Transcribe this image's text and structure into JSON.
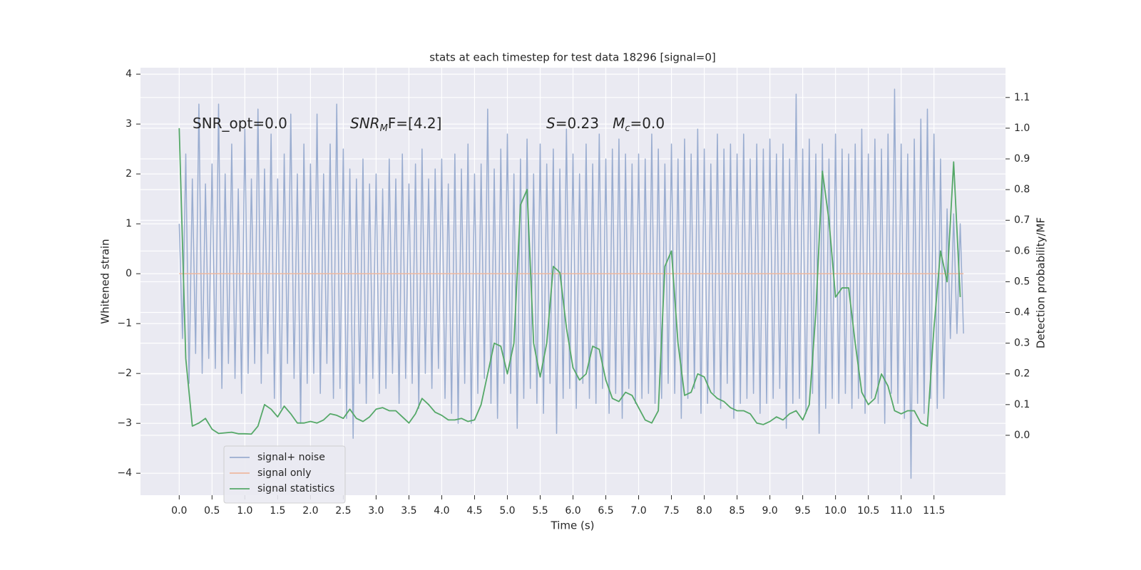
{
  "chart_data": {
    "type": "line",
    "title": "stats at each timestep for test data 18296 [signal=0]",
    "x_label": "Time (s)",
    "y_label": "Whitened strain",
    "y2_label": "Detection probability/MF",
    "annotations": [
      [
        "SNR_opt=0.0"
      ],
      [
        "SNR",
        "M",
        "F=[4.2]"
      ],
      [
        "S",
        "=0.23   ",
        "M",
        "c",
        "=0.0"
      ]
    ],
    "xlim": [
      -0.59,
      12.59
    ],
    "ylim": [
      -4.44,
      4.13
    ],
    "y2lim": [
      -0.195,
      1.197
    ],
    "xticks": [
      {
        "value": 0,
        "label": "0.0"
      },
      0.5,
      {
        "value": 1,
        "label": "1.0"
      },
      1.5,
      {
        "value": 2,
        "label": "2.0"
      },
      2.5,
      {
        "value": 3,
        "label": "3.0"
      },
      3.5,
      {
        "value": 4,
        "label": "4.0"
      },
      4.5,
      {
        "value": 5,
        "label": "5.0"
      },
      5.5,
      {
        "value": 6,
        "label": "6.0"
      },
      6.5,
      {
        "value": 7,
        "label": "7.0"
      },
      7.5,
      {
        "value": 8,
        "label": "8.0"
      },
      8.5,
      {
        "value": 9,
        "label": "9.0"
      },
      9.5,
      {
        "value": 10,
        "label": "10.0"
      },
      10.5,
      {
        "value": 11,
        "label": "11.0"
      },
      11.5
    ],
    "yticks": [
      {
        "value": -4,
        "label": "−4"
      },
      {
        "value": -3,
        "label": "−3"
      },
      {
        "value": -2,
        "label": "−2"
      },
      {
        "value": -1,
        "label": "−1"
      },
      0,
      1,
      2,
      3,
      4
    ],
    "y2ticks": [
      {
        "value": 0,
        "label": "0.0"
      },
      0.1,
      0.2,
      0.3,
      0.4,
      0.5,
      0.6,
      0.7,
      0.8,
      0.9,
      {
        "value": 1,
        "label": "1.0"
      },
      1.1
    ],
    "grid": true,
    "legend_loc": "lower left",
    "series": [
      {
        "name": "signal+ noise",
        "color": "#9aadd0",
        "x": [
          0,
          0.05,
          0.1,
          0.15,
          0.2,
          0.25,
          0.3,
          0.35,
          0.4,
          0.45,
          0.5,
          0.55,
          0.6,
          0.65,
          0.7,
          0.75,
          0.8,
          0.85,
          0.9,
          0.95,
          1,
          1.05,
          1.1,
          1.15,
          1.2,
          1.25,
          1.3,
          1.35,
          1.4,
          1.45,
          1.5,
          1.55,
          1.6,
          1.65,
          1.7,
          1.75,
          1.8,
          1.85,
          1.9,
          1.95,
          2,
          2.05,
          2.1,
          2.15,
          2.2,
          2.25,
          2.3,
          2.35,
          2.4,
          2.45,
          2.5,
          2.55,
          2.6,
          2.65,
          2.7,
          2.75,
          2.8,
          2.85,
          2.9,
          2.95,
          3,
          3.05,
          3.1,
          3.15,
          3.2,
          3.25,
          3.3,
          3.35,
          3.4,
          3.45,
          3.5,
          3.55,
          3.6,
          3.65,
          3.7,
          3.75,
          3.8,
          3.85,
          3.9,
          3.95,
          4,
          4.05,
          4.1,
          4.15,
          4.2,
          4.25,
          4.3,
          4.35,
          4.4,
          4.45,
          4.5,
          4.55,
          4.6,
          4.65,
          4.7,
          4.75,
          4.8,
          4.85,
          4.9,
          4.95,
          5,
          5.05,
          5.1,
          5.15,
          5.2,
          5.25,
          5.3,
          5.35,
          5.4,
          5.45,
          5.5,
          5.55,
          5.6,
          5.65,
          5.7,
          5.75,
          5.8,
          5.85,
          5.9,
          5.95,
          6,
          6.05,
          6.1,
          6.15,
          6.2,
          6.25,
          6.3,
          6.35,
          6.4,
          6.45,
          6.5,
          6.55,
          6.6,
          6.65,
          6.7,
          6.75,
          6.8,
          6.85,
          6.9,
          6.95,
          7,
          7.05,
          7.1,
          7.15,
          7.2,
          7.25,
          7.3,
          7.35,
          7.4,
          7.45,
          7.5,
          7.55,
          7.6,
          7.65,
          7.7,
          7.75,
          7.8,
          7.85,
          7.9,
          7.95,
          8,
          8.05,
          8.1,
          8.15,
          8.2,
          8.25,
          8.3,
          8.35,
          8.4,
          8.45,
          8.5,
          8.55,
          8.6,
          8.65,
          8.7,
          8.75,
          8.8,
          8.85,
          8.9,
          8.95,
          9,
          9.05,
          9.1,
          9.15,
          9.2,
          9.25,
          9.3,
          9.35,
          9.4,
          9.45,
          9.5,
          9.55,
          9.6,
          9.65,
          9.7,
          9.75,
          9.8,
          9.85,
          9.9,
          9.95,
          10,
          10.05,
          10.1,
          10.15,
          10.2,
          10.25,
          10.3,
          10.35,
          10.4,
          10.45,
          10.5,
          10.55,
          10.6,
          10.65,
          10.7,
          10.75,
          10.8,
          10.85,
          10.9,
          10.95,
          11,
          11.05,
          11.1,
          11.15,
          11.2,
          11.25,
          11.3,
          11.35,
          11.4,
          11.45,
          11.5,
          11.55,
          11.6,
          11.65,
          11.7,
          11.75,
          11.8,
          11.85,
          11.9,
          11.95
        ],
        "values": [
          1.0,
          -1.3,
          2.4,
          -2.2,
          1.9,
          -1.6,
          3.4,
          -2.0,
          1.8,
          -1.7,
          2.2,
          -1.9,
          3.4,
          -2.3,
          2.0,
          -1.8,
          2.6,
          -2.1,
          1.7,
          -2.4,
          2.9,
          -2.0,
          1.9,
          -1.8,
          3.3,
          -2.2,
          2.1,
          -1.6,
          2.8,
          -2.5,
          1.9,
          -2.7,
          2.4,
          -1.8,
          3.2,
          -2.1,
          2.0,
          -3.0,
          2.6,
          -2.2,
          2.2,
          -2.0,
          3.2,
          -2.4,
          2.0,
          -1.8,
          2.6,
          -2.5,
          3.4,
          -2.3,
          2.5,
          -2.9,
          2.1,
          -3.3,
          1.9,
          -2.2,
          2.3,
          -2.6,
          1.8,
          -2.1,
          2.0,
          -2.4,
          1.7,
          -2.3,
          2.3,
          -2.0,
          1.9,
          -2.6,
          2.4,
          -2.1,
          1.8,
          -2.2,
          2.2,
          -2.7,
          2.5,
          -2.0,
          1.9,
          -2.3,
          2.1,
          -1.9,
          2.3,
          -2.5,
          1.8,
          -2.8,
          2.4,
          -3.0,
          2.1,
          -2.2,
          2.6,
          -3.0,
          2.0,
          -2.4,
          2.2,
          -2.1,
          3.3,
          -2.6,
          2.1,
          -2.9,
          2.5,
          -2.2,
          2.8,
          -2.4,
          2.0,
          -3.1,
          2.3,
          -2.5,
          2.7,
          -2.3,
          2.0,
          -2.6,
          2.6,
          -2.8,
          2.2,
          -2.2,
          2.5,
          -3.2,
          2.1,
          -2.5,
          2.9,
          -2.3,
          2.4,
          -2.7,
          2.0,
          -2.2,
          2.6,
          -2.5,
          2.2,
          -2.6,
          2.8,
          -2.3,
          2.3,
          -2.8,
          2.5,
          -2.4,
          2.7,
          -2.9,
          2.4,
          -2.3,
          2.2,
          -2.6,
          2.4,
          -2.5,
          2.3,
          -2.4,
          2.8,
          -2.6,
          2.5,
          -2.5,
          2.2,
          -2.2,
          2.6,
          -2.4,
          2.3,
          -2.9,
          2.7,
          -2.5,
          2.4,
          -2.3,
          2.9,
          -2.8,
          2.5,
          -2.6,
          2.2,
          -2.4,
          2.8,
          -2.7,
          2.5,
          -2.2,
          2.6,
          -2.9,
          2.4,
          -2.6,
          2.8,
          -2.5,
          2.3,
          -2.4,
          2.6,
          -2.8,
          2.5,
          -2.6,
          2.7,
          -2.5,
          2.4,
          -2.3,
          2.6,
          -3.1,
          2.3,
          -2.6,
          3.6,
          -2.5,
          2.5,
          -2.8,
          2.7,
          -2.4,
          2.4,
          -3.2,
          2.6,
          -2.7,
          2.3,
          -2.5,
          2.8,
          -2.6,
          2.5,
          -2.4,
          2.4,
          -2.7,
          2.6,
          -2.5,
          2.9,
          -2.8,
          2.4,
          -2.5,
          2.7,
          -2.6,
          2.5,
          -3.0,
          2.8,
          -2.4,
          3.7,
          -2.6,
          2.6,
          -2.9,
          2.4,
          -4.1,
          2.7,
          -2.6,
          3.1,
          -2.8,
          3.3,
          -2.5,
          2.8,
          -2.7,
          2.3,
          -2.5,
          1.3,
          -1.3,
          1.2,
          -1.2,
          1.0,
          -1.2
        ]
      },
      {
        "name": "signal only",
        "color": "#eeb9a0",
        "x": [
          0,
          11.95
        ],
        "values": [
          0,
          0
        ]
      },
      {
        "name": "signal statistics",
        "color": "#55a868",
        "axis": "y2",
        "x": [
          0,
          0.1,
          0.2,
          0.3,
          0.4,
          0.5,
          0.6,
          0.7,
          0.8,
          0.9,
          1,
          1.1,
          1.2,
          1.3,
          1.4,
          1.5,
          1.6,
          1.7,
          1.8,
          1.9,
          2,
          2.1,
          2.2,
          2.3,
          2.4,
          2.5,
          2.6,
          2.7,
          2.8,
          2.9,
          3,
          3.1,
          3.2,
          3.3,
          3.4,
          3.5,
          3.6,
          3.7,
          3.8,
          3.9,
          4,
          4.1,
          4.2,
          4.3,
          4.4,
          4.5,
          4.6,
          4.7,
          4.8,
          4.9,
          5,
          5.1,
          5.2,
          5.3,
          5.4,
          5.5,
          5.6,
          5.7,
          5.8,
          5.9,
          6,
          6.1,
          6.2,
          6.3,
          6.4,
          6.5,
          6.6,
          6.7,
          6.8,
          6.9,
          7,
          7.1,
          7.2,
          7.3,
          7.4,
          7.5,
          7.6,
          7.7,
          7.8,
          7.9,
          8,
          8.1,
          8.2,
          8.3,
          8.4,
          8.5,
          8.6,
          8.7,
          8.8,
          8.9,
          9,
          9.1,
          9.2,
          9.3,
          9.4,
          9.5,
          9.6,
          9.7,
          9.8,
          9.9,
          10,
          10.1,
          10.2,
          10.3,
          10.4,
          10.5,
          10.6,
          10.7,
          10.8,
          10.9,
          11,
          11.1,
          11.2,
          11.3,
          11.4,
          11.5,
          11.6,
          11.7,
          11.8,
          11.9
        ],
        "values": [
          1.0,
          0.25,
          0.03,
          0.04,
          0.055,
          0.02,
          0.006,
          0.008,
          0.01,
          0.005,
          0.005,
          0.004,
          0.03,
          0.1,
          0.085,
          0.06,
          0.095,
          0.07,
          0.04,
          0.04,
          0.045,
          0.04,
          0.05,
          0.07,
          0.065,
          0.055,
          0.085,
          0.055,
          0.045,
          0.06,
          0.085,
          0.09,
          0.08,
          0.08,
          0.06,
          0.04,
          0.07,
          0.12,
          0.1,
          0.075,
          0.065,
          0.05,
          0.05,
          0.055,
          0.045,
          0.05,
          0.1,
          0.2,
          0.3,
          0.29,
          0.2,
          0.3,
          0.75,
          0.8,
          0.3,
          0.19,
          0.3,
          0.55,
          0.53,
          0.35,
          0.22,
          0.18,
          0.2,
          0.29,
          0.28,
          0.18,
          0.12,
          0.11,
          0.14,
          0.13,
          0.09,
          0.05,
          0.04,
          0.08,
          0.55,
          0.6,
          0.3,
          0.13,
          0.14,
          0.2,
          0.19,
          0.14,
          0.12,
          0.11,
          0.09,
          0.08,
          0.08,
          0.07,
          0.04,
          0.035,
          0.045,
          0.06,
          0.05,
          0.07,
          0.08,
          0.05,
          0.1,
          0.4,
          0.86,
          0.7,
          0.45,
          0.48,
          0.48,
          0.3,
          0.14,
          0.1,
          0.12,
          0.2,
          0.16,
          0.08,
          0.07,
          0.08,
          0.08,
          0.04,
          0.03,
          0.35,
          0.6,
          0.5,
          0.89,
          0.45
        ]
      }
    ]
  }
}
